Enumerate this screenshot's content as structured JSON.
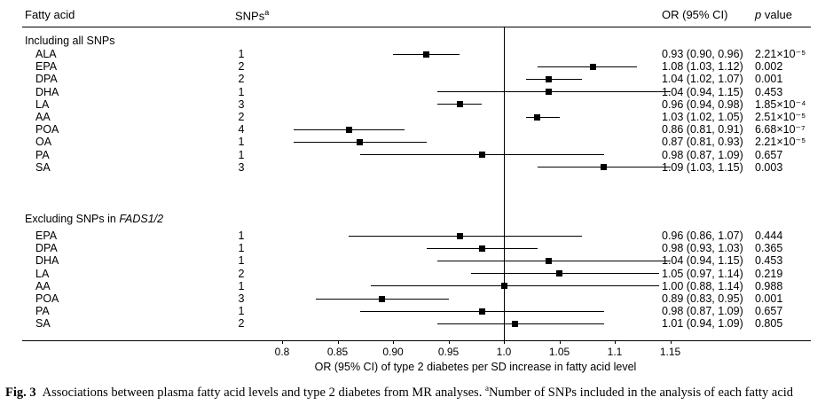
{
  "header": {
    "fatty_acid": "Fatty acid",
    "snps": "SNPs",
    "snps_sup": "a",
    "or_ci": "OR (95% CI)",
    "p_italic": "p",
    "p_rest": " value"
  },
  "chart_data": {
    "type": "forest",
    "xlabel": "OR (95% CI) of type 2 diabetes per SD increase in fatty acid level",
    "x_ticks": [
      0.8,
      0.85,
      0.9,
      0.95,
      1.0,
      1.05,
      1.1,
      1.15
    ],
    "x_tick_labels": [
      "0.8",
      "0.85",
      "0.90",
      "0.95",
      "1.0",
      "1.05",
      "1.1",
      "1.15"
    ],
    "xlim": [
      0.78,
      1.19
    ],
    "reference_line": 1.0,
    "grid": false,
    "legend": "none",
    "groups": [
      {
        "label": "Including all SNPs",
        "label_italic": "",
        "rows": [
          {
            "label": "ALA",
            "snps": "1",
            "or": 0.93,
            "lo": 0.9,
            "hi": 0.96,
            "or_ci": "0.93 (0.90, 0.96)",
            "p": "2.21×10⁻⁵"
          },
          {
            "label": "EPA",
            "snps": "2",
            "or": 1.08,
            "lo": 1.03,
            "hi": 1.12,
            "or_ci": "1.08 (1.03, 1.12)",
            "p": "0.002"
          },
          {
            "label": "DPA",
            "snps": "2",
            "or": 1.04,
            "lo": 1.02,
            "hi": 1.07,
            "or_ci": "1.04 (1.02, 1.07)",
            "p": "0.001"
          },
          {
            "label": "DHA",
            "snps": "1",
            "or": 1.04,
            "lo": 0.94,
            "hi": 1.15,
            "or_ci": "1.04 (0.94, 1.15)",
            "p": "0.453"
          },
          {
            "label": "LA",
            "snps": "3",
            "or": 0.96,
            "lo": 0.94,
            "hi": 0.98,
            "or_ci": "0.96 (0.94, 0.98)",
            "p": "1.85×10⁻⁴"
          },
          {
            "label": "AA",
            "snps": "2",
            "or": 1.03,
            "lo": 1.02,
            "hi": 1.05,
            "or_ci": "1.03 (1.02, 1.05)",
            "p": "2.51×10⁻⁵"
          },
          {
            "label": "POA",
            "snps": "4",
            "or": 0.86,
            "lo": 0.81,
            "hi": 0.91,
            "or_ci": "0.86 (0.81, 0.91)",
            "p": "6.68×10⁻⁷"
          },
          {
            "label": "OA",
            "snps": "1",
            "or": 0.87,
            "lo": 0.81,
            "hi": 0.93,
            "or_ci": "0.87 (0.81, 0.93)",
            "p": "2.21×10⁻⁵"
          },
          {
            "label": "PA",
            "snps": "1",
            "or": 0.98,
            "lo": 0.87,
            "hi": 1.09,
            "or_ci": "0.98 (0.87, 1.09)",
            "p": "0.657"
          },
          {
            "label": "SA",
            "snps": "3",
            "or": 1.09,
            "lo": 1.03,
            "hi": 1.15,
            "or_ci": "1.09 (1.03, 1.15)",
            "p": "0.003"
          }
        ]
      },
      {
        "label": "Excluding SNPs in ",
        "label_italic": "FADS1/2",
        "rows": [
          {
            "label": "EPA",
            "snps": "1",
            "or": 0.96,
            "lo": 0.86,
            "hi": 1.07,
            "or_ci": "0.96 (0.86, 1.07)",
            "p": "0.444"
          },
          {
            "label": "DPA",
            "snps": "1",
            "or": 0.98,
            "lo": 0.93,
            "hi": 1.03,
            "or_ci": "0.98 (0.93, 1.03)",
            "p": "0.365"
          },
          {
            "label": "DHA",
            "snps": "1",
            "or": 1.04,
            "lo": 0.94,
            "hi": 1.15,
            "or_ci": "1.04 (0.94, 1.15)",
            "p": "0.453"
          },
          {
            "label": "LA",
            "snps": "2",
            "or": 1.05,
            "lo": 0.97,
            "hi": 1.14,
            "or_ci": "1.05 (0.97, 1.14)",
            "p": "0.219"
          },
          {
            "label": "AA",
            "snps": "1",
            "or": 1.0,
            "lo": 0.88,
            "hi": 1.14,
            "or_ci": "1.00 (0.88, 1.14)",
            "p": "0.988"
          },
          {
            "label": "POA",
            "snps": "3",
            "or": 0.89,
            "lo": 0.83,
            "hi": 0.95,
            "or_ci": "0.89 (0.83, 0.95)",
            "p": "0.001"
          },
          {
            "label": "PA",
            "snps": "1",
            "or": 0.98,
            "lo": 0.87,
            "hi": 1.09,
            "or_ci": "0.98 (0.87, 1.09)",
            "p": "0.657"
          },
          {
            "label": "SA",
            "snps": "2",
            "or": 1.01,
            "lo": 0.94,
            "hi": 1.09,
            "or_ci": "1.01 (0.94, 1.09)",
            "p": "0.805"
          }
        ]
      }
    ]
  },
  "caption": {
    "fig_label": "Fig. 3",
    "text": "Associations between plasma fatty acid levels and type 2 diabetes from MR analyses. ",
    "sup": "a",
    "text2": "Number of SNPs included in the analysis of each fatty acid"
  }
}
